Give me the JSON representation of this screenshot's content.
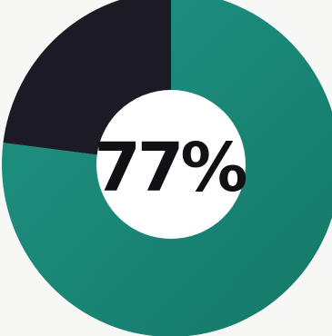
{
  "chart_data": {
    "type": "pie",
    "style": "donut",
    "categories": [
      "",
      ""
    ],
    "values": [
      77,
      23
    ],
    "colors": [
      "#1a8a7c",
      "#1c1a24"
    ],
    "center_label": "77%",
    "title": "",
    "legend": "none"
  }
}
